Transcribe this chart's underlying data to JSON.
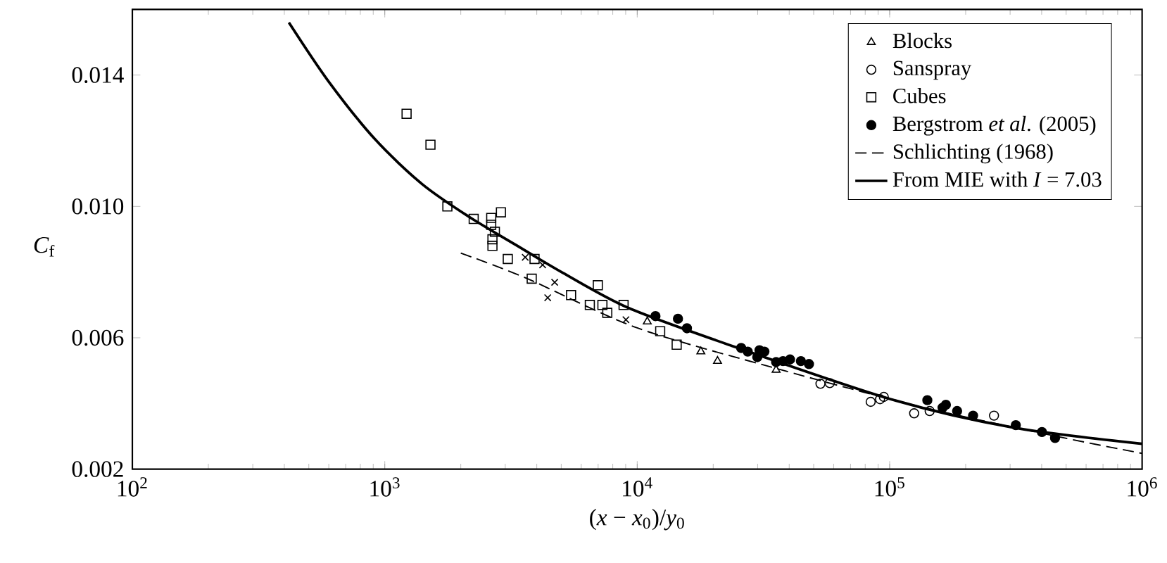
{
  "chart_data": {
    "type": "scatter",
    "xlabel": "(*x* − *x*$_{0}$)/*y*$_{0}$",
    "ylabel": "*C*$_{f}$",
    "log": "x",
    "legend": "top right",
    "grid": false,
    "xlim": [
      100,
      1000000
    ],
    "ylim": [
      0.002,
      0.016
    ],
    "xticks": [
      {
        "value": 100,
        "label": "10$^{2}$"
      },
      {
        "value": 1000,
        "label": "10$^{3}$"
      },
      {
        "value": 10000,
        "label": "10$^{4}$"
      },
      {
        "value": 100000,
        "label": "10$^{5}$"
      },
      {
        "value": 1000000,
        "label": "10$^{6}$"
      }
    ],
    "yticks": [
      0.002,
      0.006,
      {
        "value": 0.01,
        "label": "0.010"
      },
      0.014
    ],
    "series": [
      {
        "name": "Blocks",
        "marker": "triangle",
        "color": "#000000",
        "x": [
          10960,
          17870,
          20800,
          35500
        ],
        "values": [
          0.00649,
          0.00558,
          0.00529,
          0.00502
        ]
      },
      {
        "name": "Sanspray",
        "marker": "circle",
        "color": "#000000",
        "x": [
          53200,
          57900,
          84100,
          91600,
          94800,
          125000,
          144000,
          259000
        ],
        "values": [
          0.0046,
          0.00462,
          0.00405,
          0.00413,
          0.0042,
          0.0037,
          0.00377,
          0.00363
        ]
      },
      {
        "name": "Cubes",
        "marker": "square",
        "color": "#000000",
        "x": [
          1220,
          1517,
          1770,
          2250,
          2640,
          2885,
          2640,
          2730,
          2670,
          2670,
          3070,
          3920,
          3820,
          5470,
          6980,
          6490,
          7280,
          7610,
          8830,
          12330,
          14330
        ],
        "values": [
          0.01282,
          0.01188,
          0.01,
          0.00962,
          0.00965,
          0.00982,
          0.00944,
          0.00923,
          0.009,
          0.0088,
          0.0084,
          0.0084,
          0.0078,
          0.0073,
          0.0076,
          0.007,
          0.007,
          0.00676,
          0.007,
          0.0062,
          0.00579
        ]
      },
      {
        "name": "Bergstrom *et al*. (2005)",
        "marker": "dot",
        "color": "#000000",
        "x": [
          11810,
          14500,
          15740,
          25800,
          27400,
          30500,
          31900,
          29900,
          35500,
          37800,
          40300,
          44500,
          47900,
          141000,
          167000,
          162000,
          185000,
          214000,
          316000,
          401000,
          452000
        ],
        "values": [
          0.00666,
          0.00658,
          0.00629,
          0.00569,
          0.00558,
          0.00562,
          0.00558,
          0.00541,
          0.00526,
          0.00529,
          0.00534,
          0.00529,
          0.0052,
          0.0041,
          0.00396,
          0.00387,
          0.00377,
          0.00363,
          0.00334,
          0.00313,
          0.00295
        ]
      },
      {
        "marker": "cross",
        "color": "#000000",
        "x": [
          3600,
          4220,
          4710,
          4420,
          9020
        ],
        "values": [
          0.00845,
          0.00822,
          0.00769,
          0.00722,
          0.00655
        ]
      },
      {
        "name": "Schlichting (1968)",
        "type": "line",
        "line_style": "dashed",
        "color": "#000000",
        "x": [
          2000,
          3600,
          10000,
          36200,
          131000,
          471000,
          1000000
        ],
        "values": [
          0.00858,
          0.00783,
          0.0063,
          0.00505,
          0.00391,
          0.00298,
          0.00248
        ]
      },
      {
        "name": "From MIE with *I* = 7.03",
        "type": "line",
        "line_style": "solid",
        "color": "#000000",
        "x": [
          417,
          597,
          916,
          1406,
          2150,
          3300,
          5070,
          9230,
          23600,
          101000,
          307000,
          1000000
        ],
        "values": [
          0.0156,
          0.01382,
          0.01204,
          0.01068,
          0.00969,
          0.00883,
          0.00798,
          0.00691,
          0.00576,
          0.00413,
          0.00327,
          0.00277
        ]
      }
    ]
  }
}
